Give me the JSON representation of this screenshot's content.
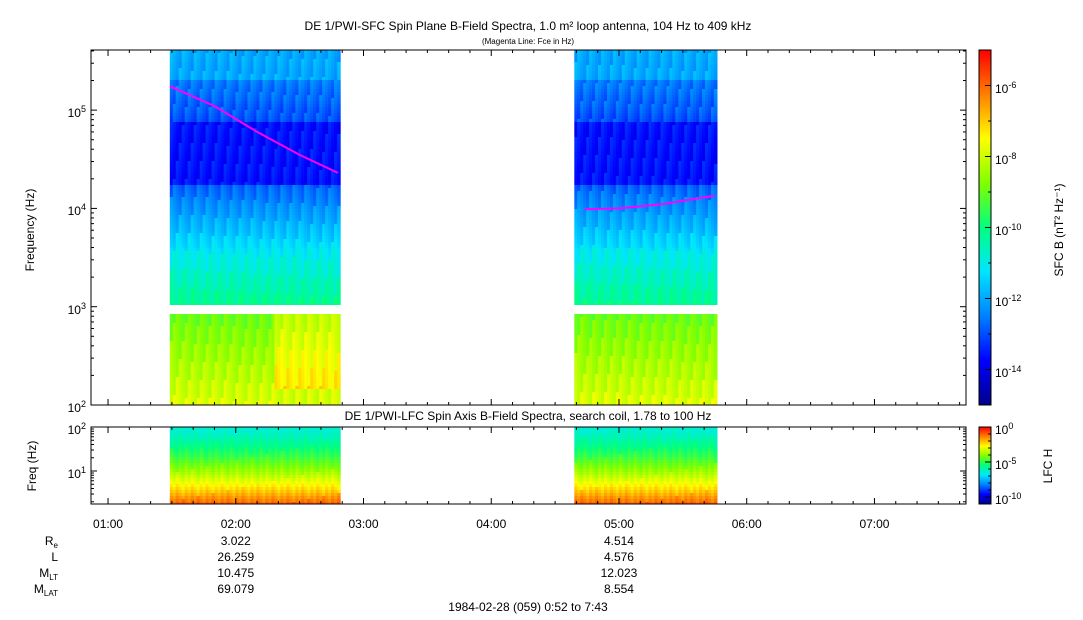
{
  "title": "DE 1/PWI-SFC  Spin Plane B-Field Spectra, 1.0 m² loop antenna, 104 Hz to 409 kHz",
  "subtitle": "(Magenta Line: Fce in Hz)",
  "panel2_title": "DE 1/PWI-LFC  Spin Axis B-Field Spectra, search coil, 1.78 to 100 Hz",
  "footer": "1984-02-28 (059) 0:52 to 7:43",
  "colors": {
    "magenta_line": "#ff00ff",
    "colormap": [
      "#00008b",
      "#0000ff",
      "#0080ff",
      "#00e5ff",
      "#00ff80",
      "#80ff00",
      "#ffff00",
      "#ff8000",
      "#ff0000"
    ]
  },
  "chart_data": [
    {
      "type": "heatmap",
      "name": "SFC spectrogram",
      "ylabel": "Frequency (Hz)",
      "yscale": "log",
      "ylim": [
        100,
        409000
      ],
      "y_ticks": [
        {
          "v": 100,
          "base": "10",
          "exp": "2"
        },
        {
          "v": 1000,
          "base": "10",
          "exp": "3"
        },
        {
          "v": 10000,
          "base": "10",
          "exp": "4"
        },
        {
          "v": 100000,
          "base": "10",
          "exp": "5"
        }
      ],
      "xlim": [
        "00:52",
        "07:43"
      ],
      "data_intervals": [
        [
          "01:29",
          "02:49"
        ],
        [
          "04:39",
          "05:46"
        ]
      ],
      "fce_line": [
        {
          "t": "01:29",
          "hz": 175000
        },
        {
          "t": "01:50",
          "hz": 110000
        },
        {
          "t": "02:10",
          "hz": 60000
        },
        {
          "t": "02:30",
          "hz": 35000
        },
        {
          "t": "02:48",
          "hz": 23000
        },
        {
          "t": "04:44",
          "hz": 9800
        },
        {
          "t": "05:00",
          "hz": 10000
        },
        {
          "t": "05:20",
          "hz": 11000
        },
        {
          "t": "05:45",
          "hz": 13500
        }
      ],
      "colorbar": {
        "label": "SFC B (nT² Hz⁻¹)",
        "scale": "log",
        "range": [
          1e-15,
          1e-05
        ],
        "ticks": [
          {
            "base": "10",
            "exp": "-6"
          },
          {
            "base": "10",
            "exp": "-8"
          },
          {
            "base": "10",
            "exp": "-10"
          },
          {
            "base": "10",
            "exp": "-12"
          },
          {
            "base": "10",
            "exp": "-14"
          }
        ]
      }
    },
    {
      "type": "heatmap",
      "name": "LFC spectrogram",
      "ylabel": "Freq (Hz)",
      "yscale": "log",
      "ylim": [
        1.78,
        100
      ],
      "y_ticks": [
        {
          "v": 10,
          "base": "10",
          "exp": "1"
        },
        {
          "v": 100,
          "base": "10",
          "exp": "2"
        }
      ],
      "xlim": [
        "00:52",
        "07:43"
      ],
      "data_intervals": [
        [
          "01:29",
          "02:49"
        ],
        [
          "04:39",
          "05:46"
        ]
      ],
      "colorbar": {
        "label": "LFC H",
        "scale": "log",
        "range": [
          1e-11,
          1
        ],
        "ticks": [
          {
            "base": "10",
            "exp": "0"
          },
          {
            "base": "10",
            "exp": "-5"
          },
          {
            "base": "10",
            "exp": "-10"
          }
        ]
      }
    }
  ],
  "x_ticks": [
    "01:00",
    "02:00",
    "03:00",
    "04:00",
    "05:00",
    "06:00",
    "07:00"
  ],
  "ephemeris": {
    "rows": [
      {
        "label": "R",
        "sub": "e",
        "v1": "3.022",
        "v2": "4.514"
      },
      {
        "label": "L",
        "sub": "",
        "v1": "26.259",
        "v2": "4.576"
      },
      {
        "label": "M",
        "sub": "LT",
        "v1": "10.475",
        "v2": "12.023"
      },
      {
        "label": "M",
        "sub": "LAT",
        "v1": "69.079",
        "v2": "8.554"
      }
    ]
  }
}
